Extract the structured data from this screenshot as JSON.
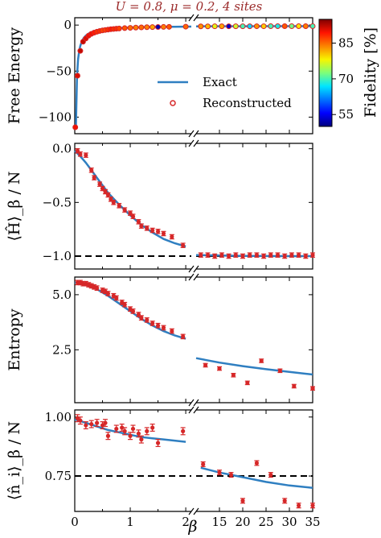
{
  "title": "U = 0.8,  μ = 0.2,  4 sites",
  "colors": {
    "exact": "#2f7fc1",
    "reconstructed": "#d62728",
    "dashed": "#000000"
  },
  "colorbar": {
    "label": "Fidelity [%]",
    "ticks": [
      "55",
      "70",
      "85"
    ],
    "range": [
      50,
      95
    ]
  },
  "legend": {
    "exact": "Exact",
    "reconstructed": "Reconstructed"
  },
  "xlabel": "β",
  "chart_data": [
    {
      "type": "scatter",
      "id": "free-energy",
      "ylabel": "Free Energy",
      "ylim": [
        -118,
        8
      ],
      "yticks": [
        0,
        -50,
        -100
      ],
      "ytick_labels": [
        "0",
        "−50",
        "−100"
      ],
      "x_left_range": [
        0,
        2.1
      ],
      "x_right_range": [
        10,
        35
      ],
      "legend": [
        "Exact",
        "Reconstructed"
      ],
      "legend_position": "center-right",
      "exact_left": {
        "x": [
          0.02,
          0.04,
          0.06,
          0.08,
          0.1,
          0.13,
          0.16,
          0.2,
          0.25,
          0.3,
          0.4,
          0.5,
          0.6,
          0.8,
          1.0,
          1.2,
          1.5,
          1.8,
          2.1
        ],
        "y": [
          -112,
          -56,
          -37.4,
          -28.1,
          -22.6,
          -17.4,
          -14.2,
          -11.4,
          -9.2,
          -7.7,
          -5.9,
          -4.8,
          -4.1,
          -3.2,
          -2.7,
          -2.3,
          -2.0,
          -1.8,
          -1.6
        ]
      },
      "exact_right": {
        "x": [
          10,
          15,
          20,
          25,
          30,
          35
        ],
        "y": [
          -1.4,
          -1.3,
          -1.25,
          -1.22,
          -1.2,
          -1.2
        ]
      },
      "points_left": {
        "x": [
          0.01,
          0.05,
          0.1,
          0.15,
          0.2,
          0.25,
          0.3,
          0.35,
          0.4,
          0.45,
          0.5,
          0.55,
          0.6,
          0.65,
          0.7,
          0.75,
          0.8,
          0.9,
          1.0,
          1.1,
          1.2,
          1.3,
          1.4,
          1.5,
          1.6,
          1.7,
          2.0
        ],
        "y": [
          -111,
          -55,
          -28,
          -18,
          -14.5,
          -11.5,
          -9.5,
          -8.2,
          -7.2,
          -6.4,
          -5.8,
          -5.3,
          -4.9,
          -4.5,
          -4.2,
          -3.9,
          -3.7,
          -3.3,
          -3.0,
          -2.7,
          -2.5,
          -2.3,
          -2.2,
          -2.1,
          -2.0,
          -1.9,
          -1.7
        ],
        "fidelity": [
          90,
          91,
          92,
          92,
          91,
          90,
          90,
          89,
          88,
          88,
          87,
          87,
          88,
          89,
          88,
          88,
          87,
          86,
          85,
          84,
          85,
          84,
          82,
          52,
          84,
          86,
          85
        ]
      },
      "points_right": {
        "x": [
          11,
          12.5,
          14,
          15.5,
          17,
          18.5,
          20,
          21.5,
          23,
          24.5,
          26,
          27.5,
          29,
          30.5,
          32,
          33.5,
          35
        ],
        "y": [
          -1.4,
          -1.4,
          -1.35,
          -1.3,
          -1.3,
          -1.3,
          -1.3,
          -1.3,
          -1.25,
          -1.25,
          -1.22,
          -1.22,
          -1.2,
          -1.2,
          -1.2,
          -1.2,
          -1.2
        ],
        "fidelity": [
          83,
          81,
          77,
          82,
          53,
          76,
          70,
          66,
          83,
          80,
          70,
          68,
          86,
          72,
          79,
          84,
          70
        ]
      }
    },
    {
      "type": "line",
      "id": "energy",
      "ylabel": "⟨Ĥ⟩_β / N",
      "ylim": [
        -1.12,
        0.05
      ],
      "yticks": [
        0,
        -0.5,
        -1.0
      ],
      "ytick_labels": [
        "0.0",
        "−0.5",
        "−1.0"
      ],
      "hline": -1.0,
      "exact_left": {
        "x": [
          0,
          0.1,
          0.2,
          0.3,
          0.4,
          0.5,
          0.6,
          0.8,
          1.0,
          1.2,
          1.4,
          1.6,
          1.8,
          2.0
        ],
        "y": [
          -0.02,
          -0.07,
          -0.13,
          -0.2,
          -0.27,
          -0.34,
          -0.41,
          -0.52,
          -0.62,
          -0.71,
          -0.78,
          -0.84,
          -0.88,
          -0.91
        ]
      },
      "exact_right": {
        "x": [
          10,
          15,
          20,
          25,
          30,
          35
        ],
        "y": [
          -0.99,
          -0.995,
          -0.998,
          -0.999,
          -1.0,
          -1.0
        ]
      },
      "points_left": {
        "x": [
          0.05,
          0.1,
          0.2,
          0.3,
          0.35,
          0.45,
          0.5,
          0.55,
          0.6,
          0.65,
          0.7,
          0.8,
          0.9,
          1.0,
          1.05,
          1.15,
          1.2,
          1.3,
          1.4,
          1.5,
          1.6,
          1.75,
          1.95
        ],
        "y": [
          -0.02,
          -0.05,
          -0.06,
          -0.2,
          -0.27,
          -0.33,
          -0.37,
          -0.4,
          -0.43,
          -0.47,
          -0.5,
          -0.53,
          -0.57,
          -0.6,
          -0.63,
          -0.68,
          -0.72,
          -0.74,
          -0.76,
          -0.77,
          -0.79,
          -0.82,
          -0.9
        ],
        "err": [
          0.02,
          0.02,
          0.02,
          0.02,
          0.02,
          0.02,
          0.02,
          0.02,
          0.02,
          0.02,
          0.02,
          0.02,
          0.02,
          0.02,
          0.02,
          0.02,
          0.02,
          0.02,
          0.02,
          0.02,
          0.02,
          0.02,
          0.02
        ]
      },
      "points_right": {
        "x": [
          11,
          12.5,
          14,
          15.5,
          17,
          18.5,
          20,
          21.5,
          23,
          24.5,
          26,
          27.5,
          29,
          30.5,
          32,
          33.5,
          35
        ],
        "y": [
          -0.99,
          -0.99,
          -1.0,
          -0.99,
          -1.0,
          -0.99,
          -1.0,
          -0.99,
          -0.99,
          -1.0,
          -0.99,
          -0.99,
          -1.0,
          -0.99,
          -0.99,
          -1.0,
          -0.99
        ],
        "err": [
          0.02,
          0.02,
          0.02,
          0.02,
          0.02,
          0.02,
          0.02,
          0.02,
          0.02,
          0.02,
          0.02,
          0.02,
          0.02,
          0.02,
          0.02,
          0.02,
          0.02
        ]
      }
    },
    {
      "type": "line",
      "id": "entropy",
      "ylabel": "Entropy",
      "ylim": [
        0.1,
        5.8
      ],
      "yticks": [
        5.0,
        2.5
      ],
      "ytick_labels": [
        "5.0",
        "2.5"
      ],
      "exact_left": {
        "x": [
          0,
          0.2,
          0.4,
          0.6,
          0.8,
          1.0,
          1.2,
          1.4,
          1.6,
          1.8,
          2.0
        ],
        "y": [
          5.55,
          5.45,
          5.25,
          4.95,
          4.6,
          4.25,
          3.9,
          3.6,
          3.35,
          3.15,
          3.0
        ]
      },
      "exact_right": {
        "x": [
          10,
          15,
          20,
          25,
          30,
          35
        ],
        "y": [
          2.12,
          1.92,
          1.76,
          1.62,
          1.5,
          1.38
        ]
      },
      "points_left": {
        "x": [
          0.05,
          0.1,
          0.15,
          0.2,
          0.25,
          0.3,
          0.35,
          0.4,
          0.5,
          0.55,
          0.6,
          0.7,
          0.75,
          0.85,
          0.9,
          1.0,
          1.05,
          1.15,
          1.2,
          1.3,
          1.4,
          1.5,
          1.6,
          1.75,
          1.95
        ],
        "y": [
          5.55,
          5.55,
          5.5,
          5.5,
          5.45,
          5.4,
          5.35,
          5.3,
          5.2,
          5.15,
          5.05,
          4.95,
          4.85,
          4.65,
          4.55,
          4.35,
          4.25,
          4.1,
          3.95,
          3.85,
          3.7,
          3.6,
          3.5,
          3.35,
          3.1
        ],
        "err": [
          0.1,
          0.1,
          0.1,
          0.1,
          0.1,
          0.1,
          0.1,
          0.1,
          0.1,
          0.1,
          0.1,
          0.1,
          0.1,
          0.1,
          0.1,
          0.1,
          0.1,
          0.1,
          0.1,
          0.1,
          0.1,
          0.1,
          0.1,
          0.1,
          0.1
        ]
      },
      "points_right": {
        "x": [
          12,
          15,
          18,
          21,
          24,
          28,
          31,
          35
        ],
        "y": [
          1.8,
          1.65,
          1.35,
          1.0,
          2.0,
          1.55,
          0.85,
          0.75
        ],
        "err": [
          0.08,
          0.08,
          0.08,
          0.08,
          0.08,
          0.08,
          0.08,
          0.08
        ]
      }
    },
    {
      "type": "line",
      "id": "density",
      "ylabel": "⟨n̂_i⟩_β / N",
      "ylim": [
        0.6,
        1.03
      ],
      "yticks": [
        1.0,
        0.75
      ],
      "ytick_labels": [
        "1.00",
        "0.75"
      ],
      "hline": 0.75,
      "exact_left": {
        "x": [
          0,
          0.2,
          0.4,
          0.6,
          0.8,
          1.0,
          1.2,
          1.4,
          1.6,
          1.8,
          2.0
        ],
        "y": [
          0.99,
          0.975,
          0.96,
          0.945,
          0.935,
          0.925,
          0.915,
          0.91,
          0.905,
          0.9,
          0.895
        ]
      },
      "exact_right": {
        "x": [
          11,
          15,
          20,
          25,
          30,
          35
        ],
        "y": [
          0.785,
          0.765,
          0.745,
          0.725,
          0.71,
          0.7
        ]
      },
      "points_left": {
        "x": [
          0.05,
          0.1,
          0.2,
          0.3,
          0.4,
          0.5,
          0.55,
          0.6,
          0.75,
          0.85,
          0.9,
          1.0,
          1.05,
          1.15,
          1.2,
          1.3,
          1.4,
          1.5,
          1.95
        ],
        "y": [
          0.995,
          0.985,
          0.965,
          0.97,
          0.975,
          0.965,
          0.975,
          0.92,
          0.95,
          0.955,
          0.94,
          0.92,
          0.95,
          0.93,
          0.905,
          0.94,
          0.955,
          0.89,
          0.94
        ],
        "err": [
          0.015,
          0.015,
          0.015,
          0.015,
          0.015,
          0.015,
          0.015,
          0.015,
          0.015,
          0.015,
          0.015,
          0.015,
          0.015,
          0.015,
          0.015,
          0.015,
          0.015,
          0.015,
          0.015
        ]
      },
      "points_right": {
        "x": [
          11.5,
          15,
          17.5,
          20,
          23,
          26,
          29,
          32,
          35
        ],
        "y": [
          0.8,
          0.765,
          0.755,
          0.645,
          0.805,
          0.755,
          0.645,
          0.625,
          0.625
        ],
        "err": [
          0.01,
          0.01,
          0.01,
          0.01,
          0.01,
          0.01,
          0.01,
          0.01,
          0.01
        ]
      }
    }
  ],
  "x_left_ticks": [
    "0",
    "1",
    "2"
  ],
  "x_right_ticks": [
    "15",
    "20",
    "25",
    "30",
    "35"
  ]
}
